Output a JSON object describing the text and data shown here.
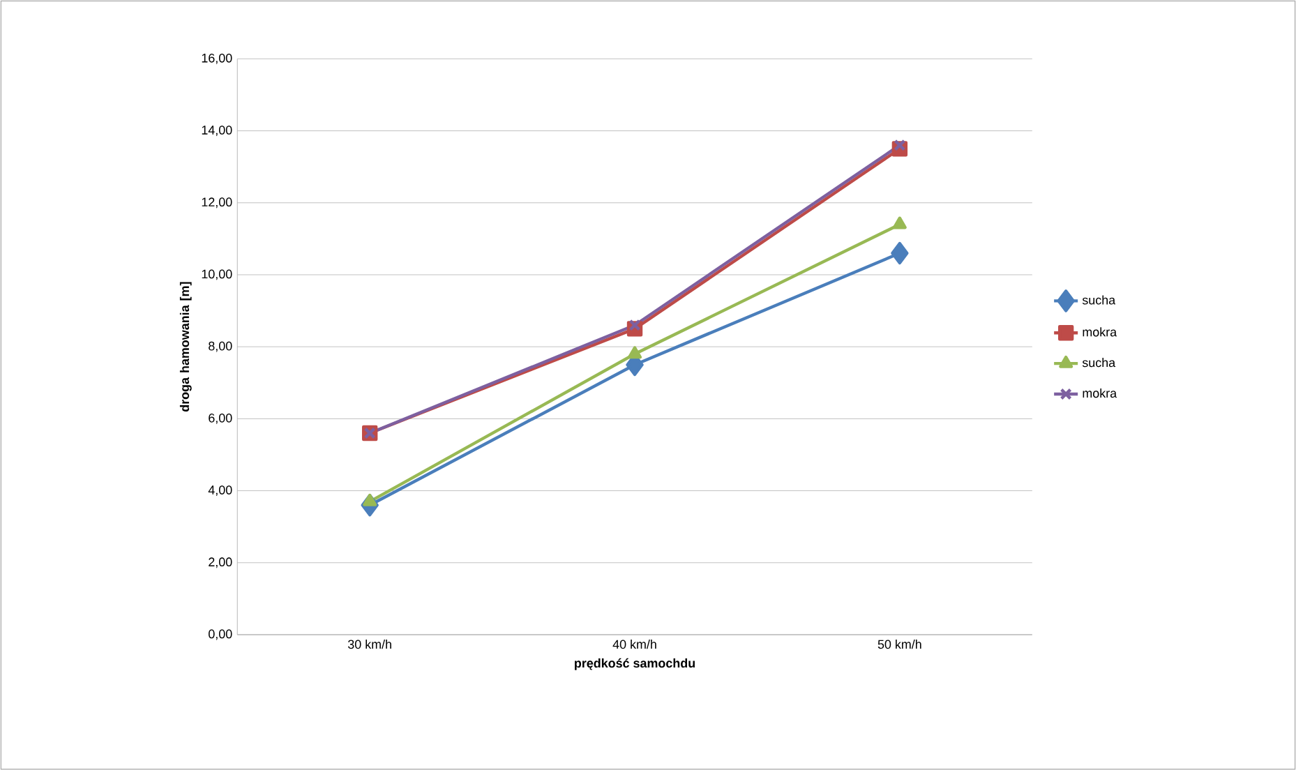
{
  "chart_data": {
    "type": "line",
    "xlabel": "prędkość samochdu",
    "ylabel": "droga hamowania [m]",
    "categories": [
      "30 km/h",
      "40 km/h",
      "50 km/h"
    ],
    "ylim": [
      0,
      16
    ],
    "yticks": [
      {
        "value": 0,
        "label": "0,00"
      },
      {
        "value": 2,
        "label": "2,00"
      },
      {
        "value": 4,
        "label": "4,00"
      },
      {
        "value": 6,
        "label": "6,00"
      },
      {
        "value": 8,
        "label": "8,00"
      },
      {
        "value": 10,
        "label": "10,00"
      },
      {
        "value": 12,
        "label": "12,00"
      },
      {
        "value": 14,
        "label": "14,00"
      },
      {
        "value": 16,
        "label": "16,00"
      }
    ],
    "grid": "y",
    "legend": "right",
    "series": [
      {
        "name": "sucha",
        "color": "#4a7ebb",
        "marker": "diamond",
        "values": [
          3.6,
          7.5,
          10.6
        ]
      },
      {
        "name": "mokra",
        "color": "#be4b48",
        "marker": "square",
        "values": [
          5.6,
          8.5,
          13.5
        ]
      },
      {
        "name": "sucha",
        "color": "#98b954",
        "marker": "triangle",
        "values": [
          3.7,
          7.8,
          11.4
        ]
      },
      {
        "name": "mokra",
        "color": "#7d60a0",
        "marker": "cross",
        "values": [
          5.6,
          8.6,
          13.6
        ]
      }
    ]
  }
}
